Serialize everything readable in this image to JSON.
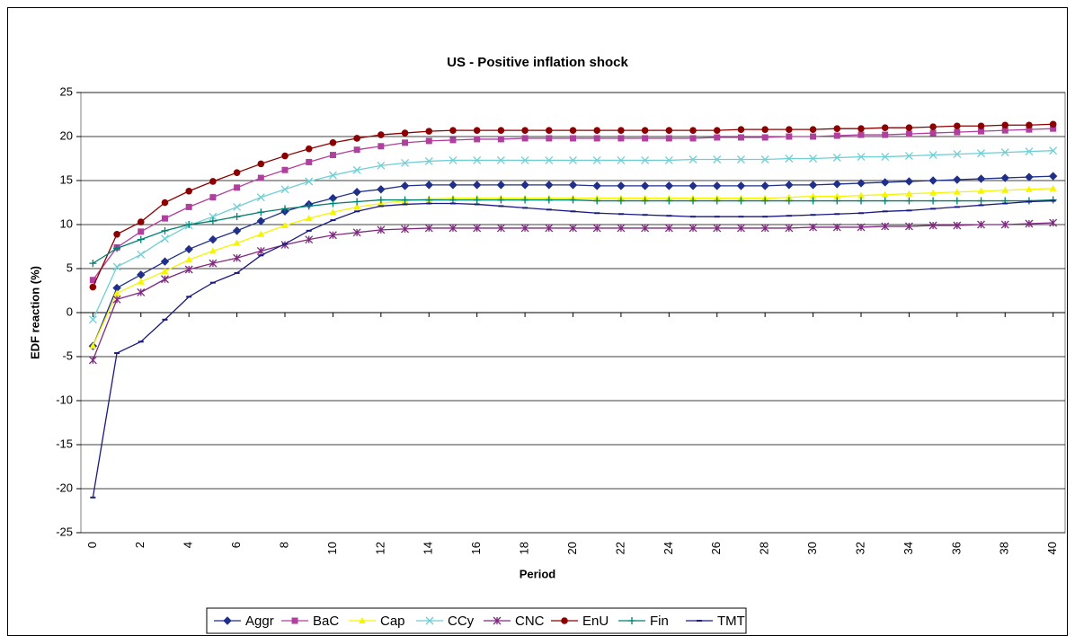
{
  "chart_data": {
    "type": "line",
    "title": "US - Positive inflation shock",
    "x_label": "Period",
    "y_label": "EDF reaction (%)",
    "x": [
      0,
      1,
      2,
      3,
      4,
      5,
      6,
      7,
      8,
      9,
      10,
      11,
      12,
      13,
      14,
      15,
      16,
      17,
      18,
      19,
      20,
      21,
      22,
      23,
      24,
      25,
      26,
      27,
      28,
      29,
      30,
      31,
      32,
      33,
      34,
      35,
      36,
      37,
      38,
      39,
      40
    ],
    "xlim": [
      -0.5,
      40.5
    ],
    "xticks": [
      0,
      2,
      4,
      6,
      8,
      10,
      12,
      14,
      16,
      18,
      20,
      22,
      24,
      26,
      28,
      30,
      32,
      34,
      36,
      38,
      40
    ],
    "ylim": [
      -25,
      25
    ],
    "yticks": [
      -25,
      -20,
      -15,
      -10,
      -5,
      0,
      5,
      10,
      15,
      20,
      25
    ],
    "grid": true,
    "legend": "bottom",
    "series": [
      {
        "name": "Aggr",
        "color": "#1f2f8a",
        "marker": "diamond",
        "values": [
          -3.8,
          2.8,
          4.3,
          5.8,
          7.2,
          8.3,
          9.3,
          10.4,
          11.5,
          12.3,
          13.0,
          13.7,
          14.0,
          14.4,
          14.5,
          14.5,
          14.5,
          14.5,
          14.5,
          14.5,
          14.5,
          14.4,
          14.4,
          14.4,
          14.4,
          14.4,
          14.4,
          14.4,
          14.4,
          14.5,
          14.5,
          14.6,
          14.7,
          14.8,
          14.9,
          15.0,
          15.1,
          15.2,
          15.3,
          15.4,
          15.5
        ]
      },
      {
        "name": "BaC",
        "color": "#b0409e",
        "marker": "square",
        "values": [
          3.7,
          7.4,
          9.2,
          10.7,
          12.0,
          13.1,
          14.2,
          15.3,
          16.2,
          17.1,
          17.9,
          18.5,
          18.9,
          19.3,
          19.5,
          19.6,
          19.7,
          19.7,
          19.8,
          19.8,
          19.8,
          19.8,
          19.8,
          19.8,
          19.8,
          19.8,
          19.9,
          19.9,
          19.9,
          20.0,
          20.0,
          20.1,
          20.2,
          20.2,
          20.3,
          20.4,
          20.5,
          20.6,
          20.7,
          20.8,
          20.9
        ]
      },
      {
        "name": "Cap",
        "color": "#f5f500",
        "marker": "triangle",
        "values": [
          -3.8,
          2.2,
          3.5,
          4.7,
          6.0,
          7.0,
          7.9,
          8.9,
          9.9,
          10.7,
          11.4,
          12.0,
          12.4,
          12.7,
          12.9,
          13.0,
          13.0,
          13.0,
          13.0,
          13.0,
          13.0,
          13.0,
          13.0,
          13.0,
          13.0,
          13.0,
          13.0,
          13.0,
          13.0,
          13.1,
          13.2,
          13.2,
          13.3,
          13.4,
          13.5,
          13.6,
          13.7,
          13.8,
          13.9,
          14.0,
          14.1
        ]
      },
      {
        "name": "CCy",
        "color": "#6fcfd3",
        "marker": "x",
        "values": [
          -0.8,
          5.2,
          6.6,
          8.4,
          9.9,
          10.9,
          12.0,
          13.1,
          14.0,
          14.9,
          15.6,
          16.2,
          16.7,
          17.0,
          17.2,
          17.3,
          17.3,
          17.3,
          17.3,
          17.3,
          17.3,
          17.3,
          17.3,
          17.3,
          17.3,
          17.4,
          17.4,
          17.4,
          17.4,
          17.5,
          17.5,
          17.6,
          17.7,
          17.7,
          17.8,
          17.9,
          18.0,
          18.1,
          18.2,
          18.3,
          18.4
        ]
      },
      {
        "name": "CNC",
        "color": "#7f2a7f",
        "marker": "star",
        "values": [
          -5.4,
          1.5,
          2.3,
          3.8,
          4.9,
          5.6,
          6.2,
          7.0,
          7.7,
          8.3,
          8.8,
          9.1,
          9.4,
          9.5,
          9.6,
          9.6,
          9.6,
          9.6,
          9.6,
          9.6,
          9.6,
          9.6,
          9.6,
          9.6,
          9.6,
          9.6,
          9.6,
          9.6,
          9.6,
          9.6,
          9.7,
          9.7,
          9.7,
          9.8,
          9.8,
          9.9,
          9.9,
          10.0,
          10.0,
          10.1,
          10.2
        ]
      },
      {
        "name": "EnU",
        "color": "#8b0000",
        "marker": "circle",
        "values": [
          2.9,
          8.9,
          10.3,
          12.5,
          13.8,
          14.9,
          15.9,
          16.9,
          17.8,
          18.6,
          19.3,
          19.8,
          20.2,
          20.4,
          20.6,
          20.7,
          20.7,
          20.7,
          20.7,
          20.7,
          20.7,
          20.7,
          20.7,
          20.7,
          20.7,
          20.7,
          20.7,
          20.8,
          20.8,
          20.8,
          20.8,
          20.9,
          20.9,
          21.0,
          21.0,
          21.1,
          21.2,
          21.2,
          21.3,
          21.3,
          21.4
        ]
      },
      {
        "name": "Fin",
        "color": "#00806f",
        "marker": "plus",
        "values": [
          5.6,
          7.3,
          8.3,
          9.3,
          10.0,
          10.4,
          10.9,
          11.4,
          11.8,
          12.1,
          12.4,
          12.6,
          12.8,
          12.8,
          12.8,
          12.8,
          12.8,
          12.8,
          12.8,
          12.8,
          12.8,
          12.7,
          12.7,
          12.7,
          12.7,
          12.7,
          12.7,
          12.7,
          12.7,
          12.7,
          12.7,
          12.7,
          12.7,
          12.7,
          12.7,
          12.7,
          12.7,
          12.7,
          12.7,
          12.7,
          12.8
        ]
      },
      {
        "name": "TMT",
        "color": "#1a1a80",
        "marker": "dash",
        "values": [
          -21.0,
          -4.6,
          -3.3,
          -0.8,
          1.8,
          3.4,
          4.5,
          6.5,
          7.8,
          9.3,
          10.5,
          11.5,
          12.1,
          12.3,
          12.4,
          12.4,
          12.3,
          12.1,
          11.9,
          11.7,
          11.5,
          11.3,
          11.2,
          11.1,
          11.0,
          10.9,
          10.9,
          10.9,
          10.9,
          11.0,
          11.1,
          11.2,
          11.3,
          11.5,
          11.6,
          11.8,
          12.0,
          12.2,
          12.4,
          12.6,
          12.7
        ]
      }
    ]
  }
}
